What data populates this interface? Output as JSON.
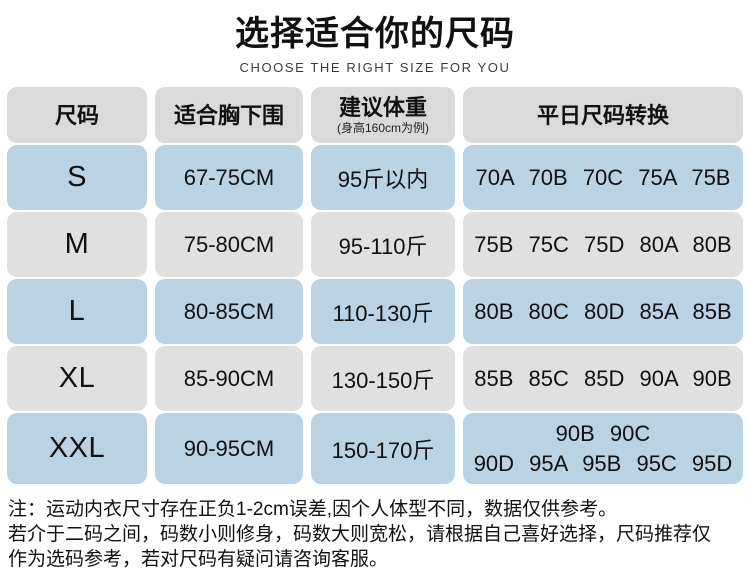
{
  "page": {
    "title": "选择适合你的尺码",
    "subtitle": "CHOOSE THE RIGHT SIZE FOR YOU"
  },
  "table": {
    "headers": {
      "size": "尺码",
      "underbust": "适合胸下围",
      "weight": "建议体重",
      "weight_note": "(身高160cm为例)",
      "conversion": "平日尺码转换"
    },
    "rows": [
      {
        "size": "S",
        "underbust": "67-75CM",
        "weight": "95斤以内",
        "conversion": "70A 70B 70C 75A 75B"
      },
      {
        "size": "M",
        "underbust": "75-80CM",
        "weight": "95-110斤",
        "conversion": "75B 75C 75D 80A 80B"
      },
      {
        "size": "L",
        "underbust": "80-85CM",
        "weight": "110-130斤",
        "conversion": "80B 80C 80D 85A 85B"
      },
      {
        "size": "XL",
        "underbust": "85-90CM",
        "weight": "130-150斤",
        "conversion": "85B 85C 85D 90A 90B"
      },
      {
        "size": "XXL",
        "underbust": "90-95CM",
        "weight": "150-170斤",
        "conversion": "90B 90C\n90D 95A 95B 95C 95D"
      }
    ]
  },
  "notes": {
    "line1": "注：运动内衣尺寸存在正负1-2cm误差,因个人体型不同，数据仅供参考。",
    "line2": "若介于二码之间，码数小则修身，码数大则宽松，请根据自己喜好选择，尺码推荐仅",
    "line3": "作为选码参考，若对尺码有疑问请咨询客服。"
  },
  "colors": {
    "row_blue": "#b9d3e5",
    "row_gray": "#e0e0e0",
    "header_gray": "#dadada"
  }
}
